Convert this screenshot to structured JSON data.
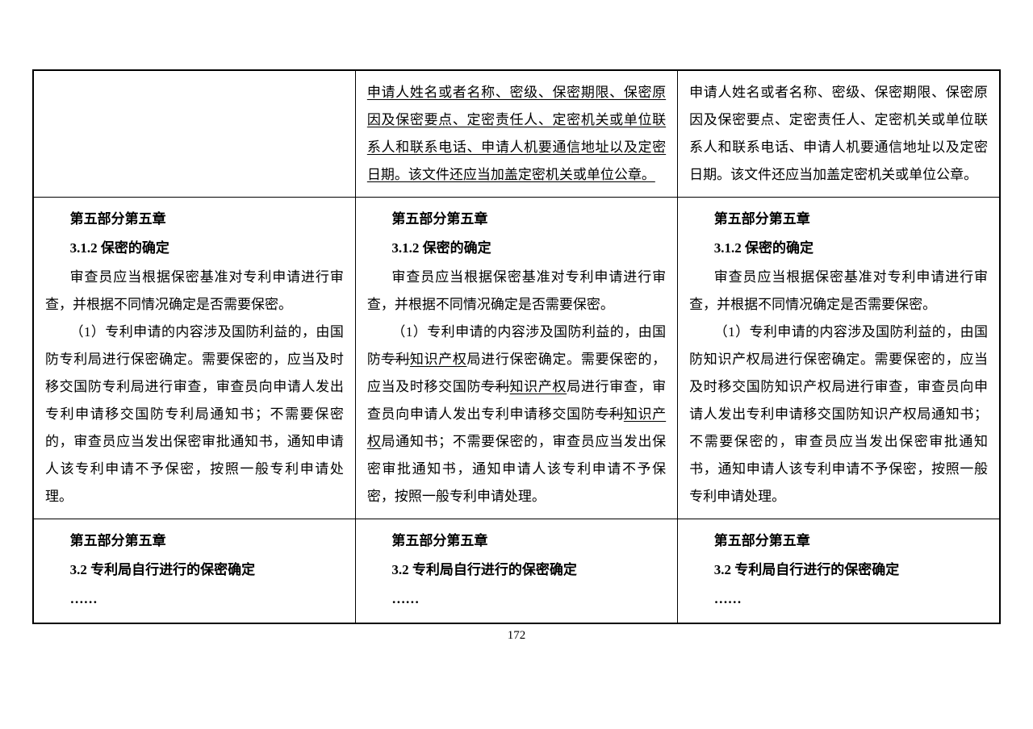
{
  "page_number": "172",
  "table": {
    "row1": {
      "col1": "",
      "col2": {
        "underlined_text": "申请人姓名或者名称、密级、保密期限、保密原因及保密要点、定密责任人、定密机关或单位联系人和联系电话、申请人机要通信地址以及定密日期。该文件还应当加盖定密机关或单位公章。"
      },
      "col3": {
        "text": "申请人姓名或者名称、密级、保密期限、保密原因及保密要点、定密责任人、定密机关或单位联系人和联系电话、申请人机要通信地址以及定密日期。该文件还应当加盖定密机关或单位公章。"
      }
    },
    "row2": {
      "col1": {
        "header": "第五部分第五章",
        "subheader": "3.1.2 保密的确定",
        "para1": "审查员应当根据保密基准对专利申请进行审查，并根据不同情况确定是否需要保密。",
        "para2": "（1）专利申请的内容涉及国防利益的，由国防专利局进行保密确定。需要保密的，应当及时移交国防专利局进行审查，审查员向申请人发出专利申请移交国防专利局通知书；不需要保密的，审查员应当发出保密审批通知书，通知申请人该专利申请不予保密，按照一般专利申请处理。"
      },
      "col2": {
        "header": "第五部分第五章",
        "subheader": "3.1.2 保密的确定",
        "para1": "审查员应当根据保密基准对专利申请进行审查，并根据不同情况确定是否需要保密。",
        "para2_part1": "（1）专利申请的内容涉及国防利益的，由国防",
        "para2_strike1": "专利",
        "para2_insert1": "知识产权",
        "para2_part2": "局进行保密确定。需要保密的，应当及时移交国防",
        "para2_strike2": "专利",
        "para2_insert2": "知识产权",
        "para2_part3": "局进行审查，审查员向申请人发出专利申请移交国防",
        "para2_strike3": "专利",
        "para2_insert3": "知识产权",
        "para2_part4": "局通知书；不需要保密的，审查员应当发出保密审批通知书，通知申请人该专利申请不予保密，按照一般专利申请处理。"
      },
      "col3": {
        "header": "第五部分第五章",
        "subheader": "3.1.2 保密的确定",
        "para1": "审查员应当根据保密基准对专利申请进行审查，并根据不同情况确定是否需要保密。",
        "para2": "（1）专利申请的内容涉及国防利益的，由国防知识产权局进行保密确定。需要保密的，应当及时移交国防知识产权局进行审查，审查员向申请人发出专利申请移交国防知识产权局通知书；不需要保密的，审查员应当发出保密审批通知书，通知申请人该专利申请不予保密，按照一般专利申请处理。"
      }
    },
    "row3": {
      "col1": {
        "header": "第五部分第五章",
        "subheader": "3.2 专利局自行进行的保密确定",
        "ellipsis": "……"
      },
      "col2": {
        "header": "第五部分第五章",
        "subheader": "3.2 专利局自行进行的保密确定",
        "ellipsis": "……"
      },
      "col3": {
        "header": "第五部分第五章",
        "subheader": "3.2 专利局自行进行的保密确定",
        "ellipsis": "……"
      }
    }
  }
}
